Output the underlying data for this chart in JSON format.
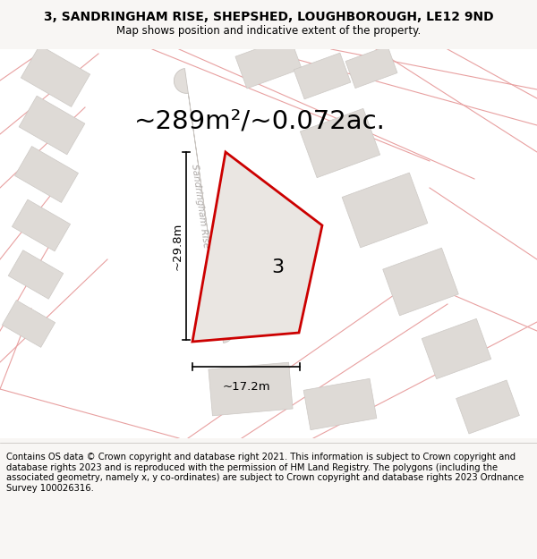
{
  "title": "3, SANDRINGHAM RISE, SHEPSHED, LOUGHBOROUGH, LE12 9ND",
  "subtitle": "Map shows position and indicative extent of the property.",
  "area_label": "~289m²/~0.072ac.",
  "plot_number": "3",
  "width_label": "~17.2m",
  "height_label": "~29.8m",
  "street_label": "Sandringham Rise",
  "footer": "Contains OS data © Crown copyright and database right 2021. This information is subject to Crown copyright and database rights 2023 and is reproduced with the permission of HM Land Registry. The polygons (including the associated geometry, namely x, y co-ordinates) are subject to Crown copyright and database rights 2023 Ordnance Survey 100026316.",
  "bg_color": "#f8f6f4",
  "map_bg": "#ffffff",
  "plot_fill": "#eae6e2",
  "plot_outline": "#cc0000",
  "road_fill": "#e2deda",
  "road_edge": "#c8c4c0",
  "building_fill": "#dedad6",
  "building_edge": "#ccc8c4",
  "nearby_line_color": "#e8a0a0",
  "nearby_fill": "#dedad6",
  "dim_line_color": "#000000",
  "street_text_color": "#b0acaa",
  "title_fontsize": 10,
  "subtitle_fontsize": 8.5,
  "area_fontsize": 21,
  "plot_label_fontsize": 16,
  "dim_fontsize": 9.5,
  "footer_fontsize": 7.2
}
